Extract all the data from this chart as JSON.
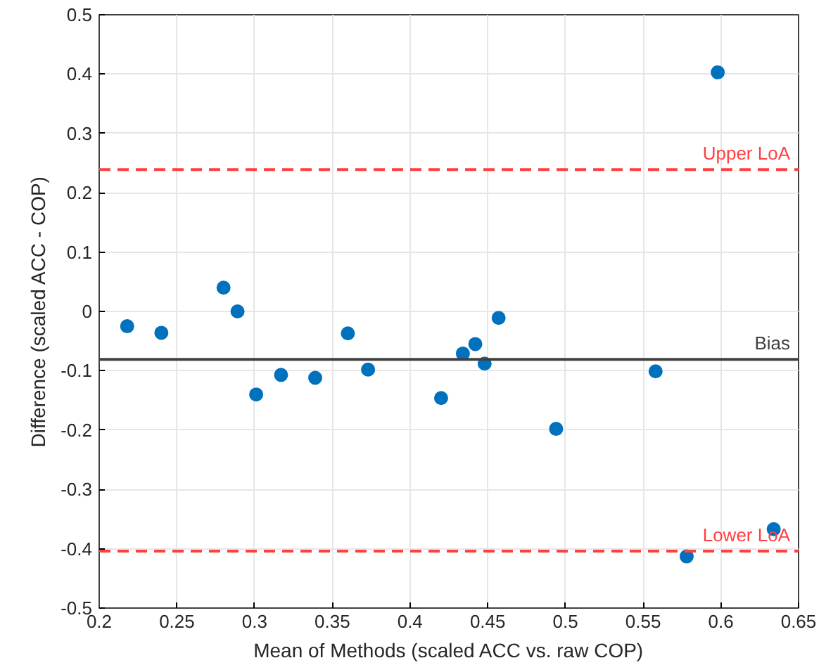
{
  "chart_data": {
    "type": "scatter",
    "xlabel": "Mean of Methods (scaled ACC vs. raw COP)",
    "ylabel": "Difference (scaled ACC - COP)",
    "x": [
      0.218,
      0.24,
      0.28,
      0.289,
      0.301,
      0.317,
      0.339,
      0.36,
      0.373,
      0.42,
      0.434,
      0.442,
      0.448,
      0.457,
      0.494,
      0.558,
      0.578,
      0.598,
      0.634
    ],
    "series": [
      {
        "color": "#0072bd",
        "values": [
          -0.025,
          -0.036,
          0.04,
          0.0,
          -0.14,
          -0.107,
          -0.112,
          -0.037,
          -0.098,
          -0.146,
          -0.071,
          -0.055,
          -0.088,
          -0.011,
          -0.198,
          -0.101,
          -0.413,
          0.403,
          -0.367
        ]
      }
    ],
    "xlim": [
      0.2,
      0.65
    ],
    "ylim": [
      -0.5,
      0.5
    ],
    "xticks": [
      0.2,
      0.25,
      0.3,
      0.35,
      0.4,
      0.45,
      0.5,
      0.55,
      0.6,
      0.65
    ],
    "yticks": [
      -0.5,
      -0.4,
      -0.3,
      -0.2,
      -0.1,
      0,
      0.1,
      0.2,
      0.3,
      0.4,
      0.5
    ],
    "ref_lines": [
      {
        "axis": "y",
        "value": 0.239,
        "label": "Upper LoA",
        "color": "#ff4040",
        "line_style": "dashed"
      },
      {
        "axis": "y",
        "value": -0.081,
        "label": "Bias",
        "color": "#404040",
        "line_style": "solid"
      },
      {
        "axis": "y",
        "value": -0.404,
        "label": "Lower LoA",
        "color": "#ff4040",
        "line_style": "dashed"
      }
    ],
    "grid": true,
    "marker": "circle"
  }
}
